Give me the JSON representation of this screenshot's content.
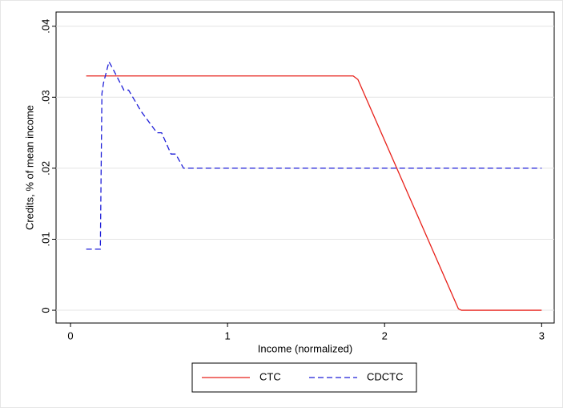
{
  "chart_data": {
    "type": "line",
    "x_label": "Income (normalized)",
    "y_label": "Credits, % of mean income",
    "xlim": [
      -0.092,
      3.08
    ],
    "ylim": [
      -0.0018,
      0.042
    ],
    "xticks": [
      0,
      1,
      2,
      3
    ],
    "yticks": [
      0,
      {
        "value": 0.01,
        "label": ".01"
      },
      {
        "value": 0.02,
        "label": ".02"
      },
      {
        "value": 0.03,
        "label": ".03"
      },
      {
        "value": 0.04,
        "label": ".04"
      }
    ],
    "grid": true,
    "legend": "bottom",
    "series": [
      {
        "name": "CTC",
        "color": "#e8211a",
        "dash": "solid",
        "x": [
          0.1,
          1.8,
          1.83,
          2.47,
          2.49,
          3.0
        ],
        "values": [
          0.033,
          0.033,
          0.0325,
          0.0002,
          0,
          0
        ]
      },
      {
        "name": "CDCTC",
        "color": "#1f1fd8",
        "dash": "dashed",
        "x": [
          0.1,
          0.19,
          0.2,
          0.21,
          0.245,
          0.27,
          0.34,
          0.37,
          0.45,
          0.55,
          0.58,
          0.64,
          0.67,
          0.72,
          3.0
        ],
        "values": [
          0.0086,
          0.0086,
          0.0305,
          0.032,
          0.035,
          0.034,
          0.031,
          0.031,
          0.028,
          0.025,
          0.025,
          0.022,
          0.022,
          0.02,
          0.02
        ]
      }
    ]
  }
}
